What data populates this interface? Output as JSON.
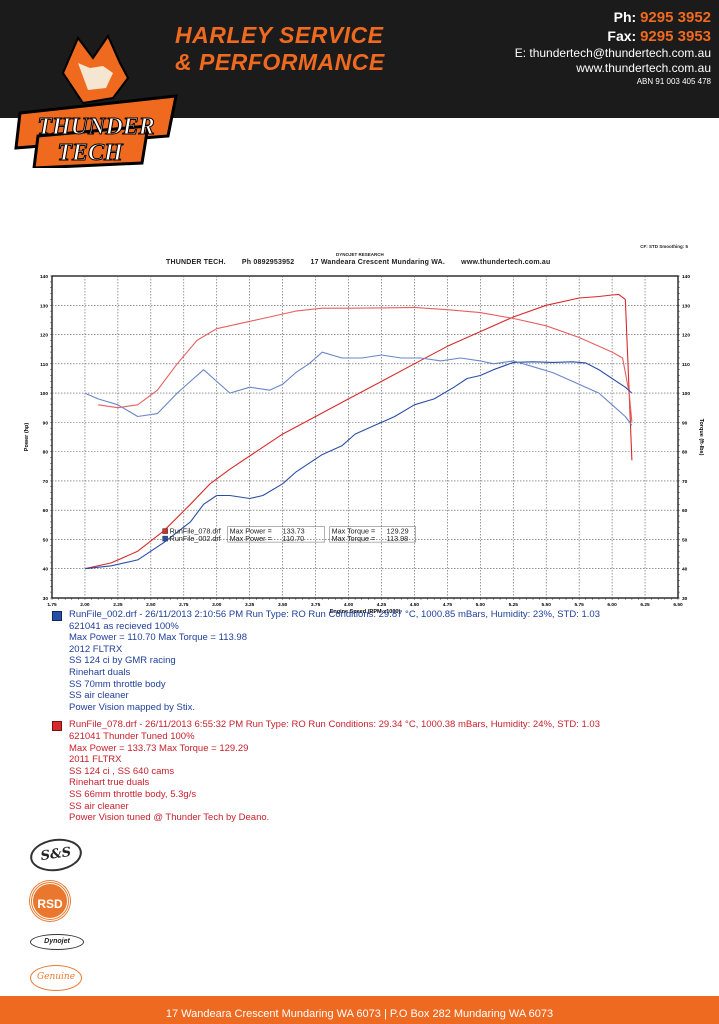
{
  "header": {
    "brand_line1": "HARLEY SERVICE",
    "brand_line2": "& PERFORMANCE",
    "logo_text_1": "THUNDER",
    "logo_text_2": "TECH",
    "phone_label": "Ph:",
    "phone": "9295 3952",
    "fax_label": "Fax:",
    "fax": "9295 3953",
    "email": "E: thundertech@thundertech.com.au",
    "website": "www.thundertech.com.au",
    "abn": "ABN 91 003 405 478"
  },
  "sheet": {
    "research": "DYNOJET RESEARCH",
    "cf": "CF: STD  Smoothing: 5",
    "shop": "THUNDER TECH.",
    "shop_phone": "Ph 0892953952",
    "shop_address": "17 Wandeara Crescent Mundaring WA.",
    "shop_web": "www.thundertech.com.au"
  },
  "chart_data": {
    "type": "line",
    "xlabel": "Engine Speed (RPM x1000)",
    "ylabel": "Power (hp)",
    "y2label": "Torque (ft-lbs)",
    "xlim": [
      1.75,
      6.5
    ],
    "ylim": [
      30,
      140
    ],
    "y2lim": [
      30,
      140
    ],
    "x_ticks": [
      "1.75",
      "2.00",
      "2.25",
      "2.50",
      "2.75",
      "3.00",
      "3.25",
      "3.50",
      "3.75",
      "4.00",
      "4.25",
      "4.50",
      "4.75",
      "5.00",
      "5.25",
      "5.50",
      "5.75",
      "6.00",
      "6.25",
      "6.50"
    ],
    "y_ticks": [
      "30",
      "40",
      "50",
      "60",
      "70",
      "80",
      "90",
      "100",
      "110",
      "120",
      "130",
      "140"
    ],
    "grid": true,
    "legend": {
      "rows": [
        {
          "file": "RunFile_078.drf",
          "power_label": "Max Power =",
          "power": "133.73",
          "torque_label": "Max Torque =",
          "torque": "129.29",
          "color": "#d62b2b"
        },
        {
          "file": "RunFile_002.drf",
          "power_label": "Max Power =",
          "power": "110.70",
          "torque_label": "Max Torque =",
          "torque": "113.98",
          "color": "#2a4ea6"
        }
      ]
    },
    "series": [
      {
        "name": "RunFile_078.drf",
        "measure": "Power",
        "color": "#d62b2b",
        "points": [
          [
            2.0,
            40
          ],
          [
            2.2,
            42
          ],
          [
            2.4,
            46
          ],
          [
            2.6,
            53
          ],
          [
            2.8,
            62
          ],
          [
            2.95,
            69
          ],
          [
            3.1,
            74
          ],
          [
            3.3,
            80
          ],
          [
            3.5,
            86
          ],
          [
            3.75,
            92
          ],
          [
            4.0,
            98
          ],
          [
            4.25,
            104
          ],
          [
            4.5,
            110
          ],
          [
            4.75,
            116
          ],
          [
            5.0,
            121
          ],
          [
            5.25,
            126
          ],
          [
            5.5,
            130
          ],
          [
            5.75,
            132.5
          ],
          [
            5.9,
            133
          ],
          [
            6.0,
            133.5
          ],
          [
            6.05,
            133.73
          ],
          [
            6.1,
            132
          ],
          [
            6.13,
            100
          ],
          [
            6.15,
            77
          ]
        ]
      },
      {
        "name": "RunFile_078.drf",
        "measure": "Torque",
        "color": "#e66060",
        "points": [
          [
            2.1,
            96
          ],
          [
            2.25,
            95
          ],
          [
            2.4,
            96
          ],
          [
            2.55,
            101
          ],
          [
            2.7,
            110
          ],
          [
            2.85,
            118
          ],
          [
            3.0,
            122
          ],
          [
            3.2,
            124
          ],
          [
            3.4,
            126
          ],
          [
            3.6,
            128
          ],
          [
            3.8,
            129
          ],
          [
            4.0,
            129
          ],
          [
            4.25,
            129.1
          ],
          [
            4.5,
            129.29
          ],
          [
            4.75,
            128.5
          ],
          [
            5.0,
            127.5
          ],
          [
            5.25,
            125.5
          ],
          [
            5.5,
            123
          ],
          [
            5.75,
            119
          ],
          [
            5.9,
            116
          ],
          [
            6.0,
            114
          ],
          [
            6.08,
            112
          ],
          [
            6.13,
            100
          ],
          [
            6.15,
            90
          ]
        ]
      },
      {
        "name": "RunFile_002.drf",
        "measure": "Power",
        "color": "#2a4ea6",
        "points": [
          [
            2.0,
            40
          ],
          [
            2.2,
            41
          ],
          [
            2.4,
            43
          ],
          [
            2.6,
            49
          ],
          [
            2.8,
            56
          ],
          [
            2.9,
            62
          ],
          [
            3.0,
            65
          ],
          [
            3.1,
            65
          ],
          [
            3.25,
            64
          ],
          [
            3.35,
            65
          ],
          [
            3.5,
            69
          ],
          [
            3.6,
            73
          ],
          [
            3.7,
            76
          ],
          [
            3.8,
            79
          ],
          [
            3.95,
            82
          ],
          [
            4.05,
            86
          ],
          [
            4.2,
            89
          ],
          [
            4.35,
            92
          ],
          [
            4.5,
            96
          ],
          [
            4.65,
            98
          ],
          [
            4.8,
            102
          ],
          [
            4.9,
            105
          ],
          [
            5.0,
            106
          ],
          [
            5.1,
            108
          ],
          [
            5.25,
            110.5
          ],
          [
            5.4,
            110.7
          ],
          [
            5.55,
            110.5
          ],
          [
            5.7,
            110.7
          ],
          [
            5.8,
            110.3
          ],
          [
            5.9,
            108
          ],
          [
            6.0,
            105
          ],
          [
            6.1,
            102
          ],
          [
            6.15,
            100
          ]
        ]
      },
      {
        "name": "RunFile_002.drf",
        "measure": "Torque",
        "color": "#6a86c8",
        "points": [
          [
            2.0,
            100
          ],
          [
            2.1,
            98
          ],
          [
            2.25,
            96
          ],
          [
            2.4,
            92
          ],
          [
            2.55,
            93
          ],
          [
            2.7,
            100
          ],
          [
            2.8,
            104
          ],
          [
            2.9,
            108
          ],
          [
            3.0,
            104
          ],
          [
            3.1,
            100
          ],
          [
            3.25,
            102
          ],
          [
            3.4,
            101
          ],
          [
            3.5,
            103
          ],
          [
            3.6,
            107
          ],
          [
            3.7,
            110
          ],
          [
            3.8,
            113.98
          ],
          [
            3.95,
            112
          ],
          [
            4.1,
            112
          ],
          [
            4.25,
            113
          ],
          [
            4.4,
            112
          ],
          [
            4.55,
            112
          ],
          [
            4.7,
            111
          ],
          [
            4.85,
            112
          ],
          [
            5.0,
            111
          ],
          [
            5.1,
            110
          ],
          [
            5.25,
            111
          ],
          [
            5.4,
            109
          ],
          [
            5.55,
            107
          ],
          [
            5.7,
            104
          ],
          [
            5.8,
            102
          ],
          [
            5.9,
            100
          ],
          [
            6.0,
            96
          ],
          [
            6.1,
            92
          ],
          [
            6.15,
            89
          ]
        ]
      }
    ]
  },
  "runs": [
    {
      "id": "blue",
      "header": "RunFile_002.drf - 26/11/2013 2:10:56 PM  Run Type: RO  Run Conditions: 29.87 °C, 1000.85 mBars,  Humidity:  23%, STD: 1.03",
      "lines": [
        "621041 as recieved 100%",
        "Max Power = 110.70  Max Torque = 113.98",
        "2012 FLTRX",
        "SS 124 ci by GMR racing",
        "Rinehart duals",
        "SS 70mm throttle body",
        "SS air cleaner",
        "Power Vision mapped by Stix."
      ]
    },
    {
      "id": "red",
      "header": "RunFile_078.drf - 26/11/2013 6:55:32 PM  Run Type: RO  Run Conditions: 29.34 °C, 1000.38 mBars,  Humidity:  24%, STD: 1.03",
      "lines": [
        "621041 Thunder Tuned 100%",
        "Max Power = 133.73  Max Torque = 129.29",
        "2011 FLTRX",
        "SS 124 ci , SS 640 cams",
        "Rinehart true duals",
        "SS 66mm throttle body, 5.3g/s",
        "SS air cleaner",
        "Power Vision tuned @ Thunder Tech by Deano."
      ]
    }
  ],
  "sponsors": {
    "ss": "S&S",
    "rsd": "RSD",
    "dynojet": "Dynojet",
    "genuine": "Genuine"
  },
  "footer": {
    "text": "17 Wandeara Crescent Mundaring WA 6073   |   P.O Box 282 Mundaring WA 6073"
  }
}
